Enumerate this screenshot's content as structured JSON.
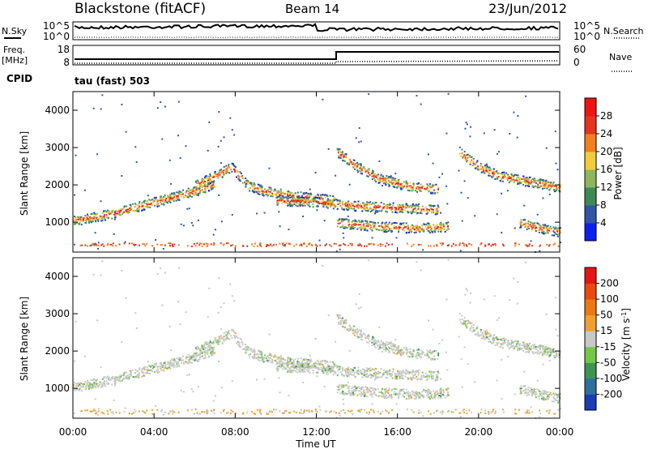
{
  "header": {
    "station": "Blackstone (fitACF)",
    "beam": "Beam 14",
    "date": "23/Jun/2012"
  },
  "noise_panel": {
    "left_label": "N.Sky",
    "right_label": "N.Search",
    "ticks_left": [
      "10^5",
      "10^0"
    ],
    "ticks_right": [
      "10^5",
      "10^0"
    ]
  },
  "freq_panel": {
    "left_label_line1": "Freq.",
    "left_label_line2": "[MHz]",
    "right_label": "Nave",
    "ticks_left": [
      "18",
      "8"
    ],
    "ticks_right": [
      "60",
      "0"
    ]
  },
  "cpid": {
    "label": "CPID",
    "value": "tau (fast) 503"
  },
  "chart_data": [
    {
      "type": "heatmap",
      "name": "Power",
      "ylabel": "Slant Range [km]",
      "xlabel": "",
      "xlim": [
        0,
        24
      ],
      "ylim": [
        200,
        4500
      ],
      "y_ticks": [
        "1000",
        "2000",
        "3000",
        "4000"
      ],
      "colorbar": {
        "label": "Power [dB]",
        "ticks": [
          "4",
          "8",
          "12",
          "16",
          "20",
          "24",
          "28"
        ],
        "colors": [
          "#0a1ff0",
          "#3355a8",
          "#3e8a55",
          "#8fb65a",
          "#f0cd3c",
          "#f08020",
          "#e6321e",
          "#ee1414"
        ]
      },
      "echo_bands": [
        {
          "t": [
            0,
            1,
            2,
            3,
            4,
            5,
            6,
            7
          ],
          "r": [
            1050,
            1150,
            1250,
            1400,
            1550,
            1700,
            1850,
            2050
          ]
        },
        {
          "t": [
            6,
            7,
            7.8,
            8.6,
            9.4,
            10.5,
            12,
            12.9
          ],
          "r": [
            2000,
            2250,
            2500,
            2000,
            1850,
            1750,
            1650,
            1600
          ]
        },
        {
          "t": [
            13,
            14,
            15,
            16,
            17,
            18
          ],
          "r": [
            2900,
            2500,
            2200,
            2050,
            1950,
            1900
          ]
        },
        {
          "t": [
            19,
            20,
            21,
            22,
            23,
            24
          ],
          "r": [
            2900,
            2500,
            2250,
            2150,
            2050,
            1950
          ]
        },
        {
          "t": [
            10,
            12,
            14,
            16,
            18
          ],
          "r": [
            1600,
            1550,
            1450,
            1400,
            1350
          ]
        },
        {
          "t": [
            13,
            15,
            17,
            18.5
          ],
          "r": [
            1000,
            900,
            850,
            900
          ]
        },
        {
          "t": [
            22,
            23,
            24
          ],
          "r": [
            1000,
            850,
            750
          ]
        }
      ]
    },
    {
      "type": "heatmap",
      "name": "Velocity",
      "ylabel": "Slant Range [km]",
      "xlabel": "Time UT",
      "xlim": [
        0,
        24
      ],
      "ylim": [
        200,
        4500
      ],
      "x_ticks": [
        "00:00",
        "04:00",
        "08:00",
        "12:00",
        "16:00",
        "20:00",
        "00:00"
      ],
      "y_ticks": [
        "1000",
        "2000",
        "3000",
        "4000"
      ],
      "colorbar": {
        "label": "Velocity [m s^-1]",
        "ticks": [
          "200",
          "100",
          "50",
          "15",
          "-15",
          "-50",
          "-100",
          "-200"
        ],
        "colors": [
          "#1a3cb4",
          "#2f6f9e",
          "#3e9452",
          "#73c84a",
          "#c8c8c8",
          "#f0a030",
          "#ec7812",
          "#e84a10",
          "#e61414"
        ]
      }
    }
  ]
}
